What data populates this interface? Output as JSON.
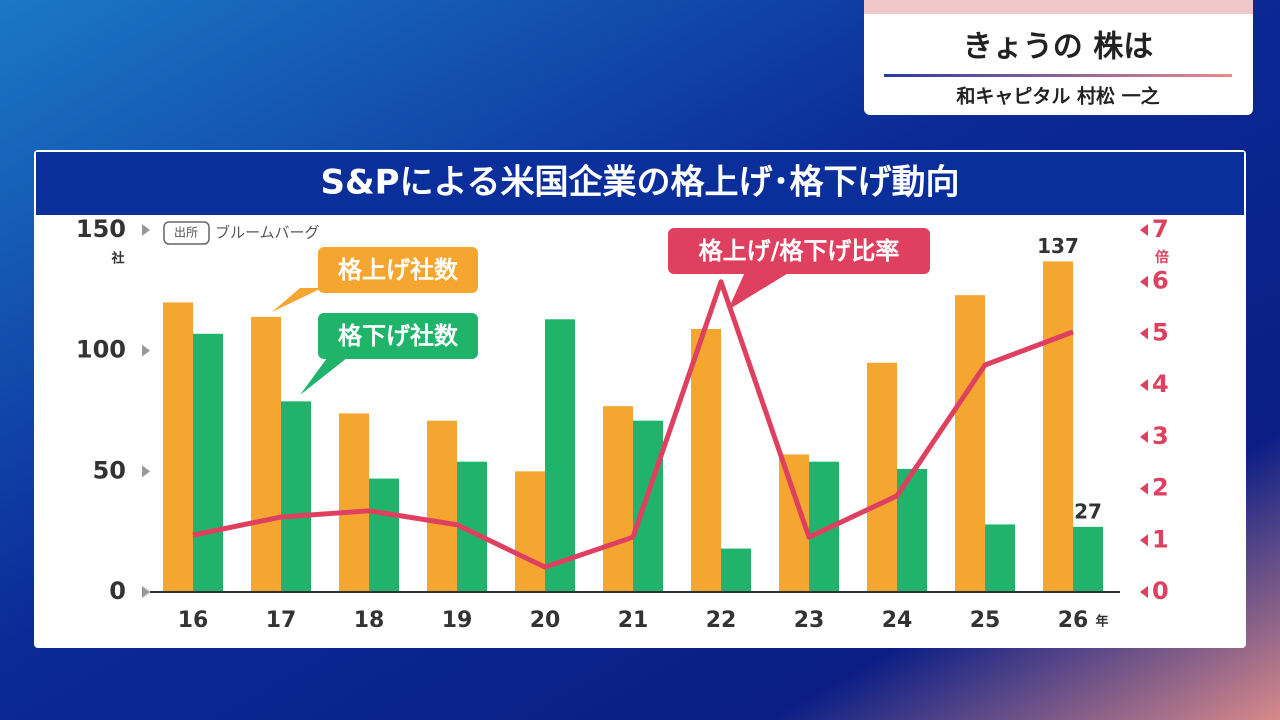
{
  "header": {
    "title": "きょうの 株は",
    "subtitle": "和キャピタル 村松 一之"
  },
  "chart_data": {
    "type": "bar",
    "title": "S&Pによる米国企業の格上げ･格下げ動向",
    "source_tag": "出所",
    "source": "ブルームバーグ",
    "ylabel": "社",
    "y2label": "倍",
    "xlabel": "年",
    "categories": [
      "16",
      "17",
      "18",
      "19",
      "20",
      "21",
      "22",
      "23",
      "24",
      "25",
      "26"
    ],
    "series": [
      {
        "name": "格上げ社数",
        "type": "bar",
        "color": "#f5a631",
        "values": [
          120,
          114,
          74,
          71,
          50,
          77,
          109,
          57,
          95,
          123,
          137
        ]
      },
      {
        "name": "格下げ社数",
        "type": "bar",
        "color": "#1fb46a",
        "values": [
          107,
          79,
          47,
          54,
          113,
          71,
          18,
          54,
          51,
          28,
          27
        ]
      },
      {
        "name": "格上げ/格下げ比率",
        "type": "line",
        "axis": "y2",
        "color": "#e0405f",
        "values": [
          1.1,
          1.45,
          1.57,
          1.3,
          0.48,
          1.06,
          6.0,
          1.06,
          1.86,
          4.39,
          5.03
        ]
      }
    ],
    "ylim": [
      0,
      150
    ],
    "yticks": [
      0,
      50,
      100,
      150
    ],
    "y2lim": [
      0,
      7
    ],
    "y2ticks": [
      0,
      1,
      2,
      3,
      4,
      5,
      6,
      7
    ]
  }
}
